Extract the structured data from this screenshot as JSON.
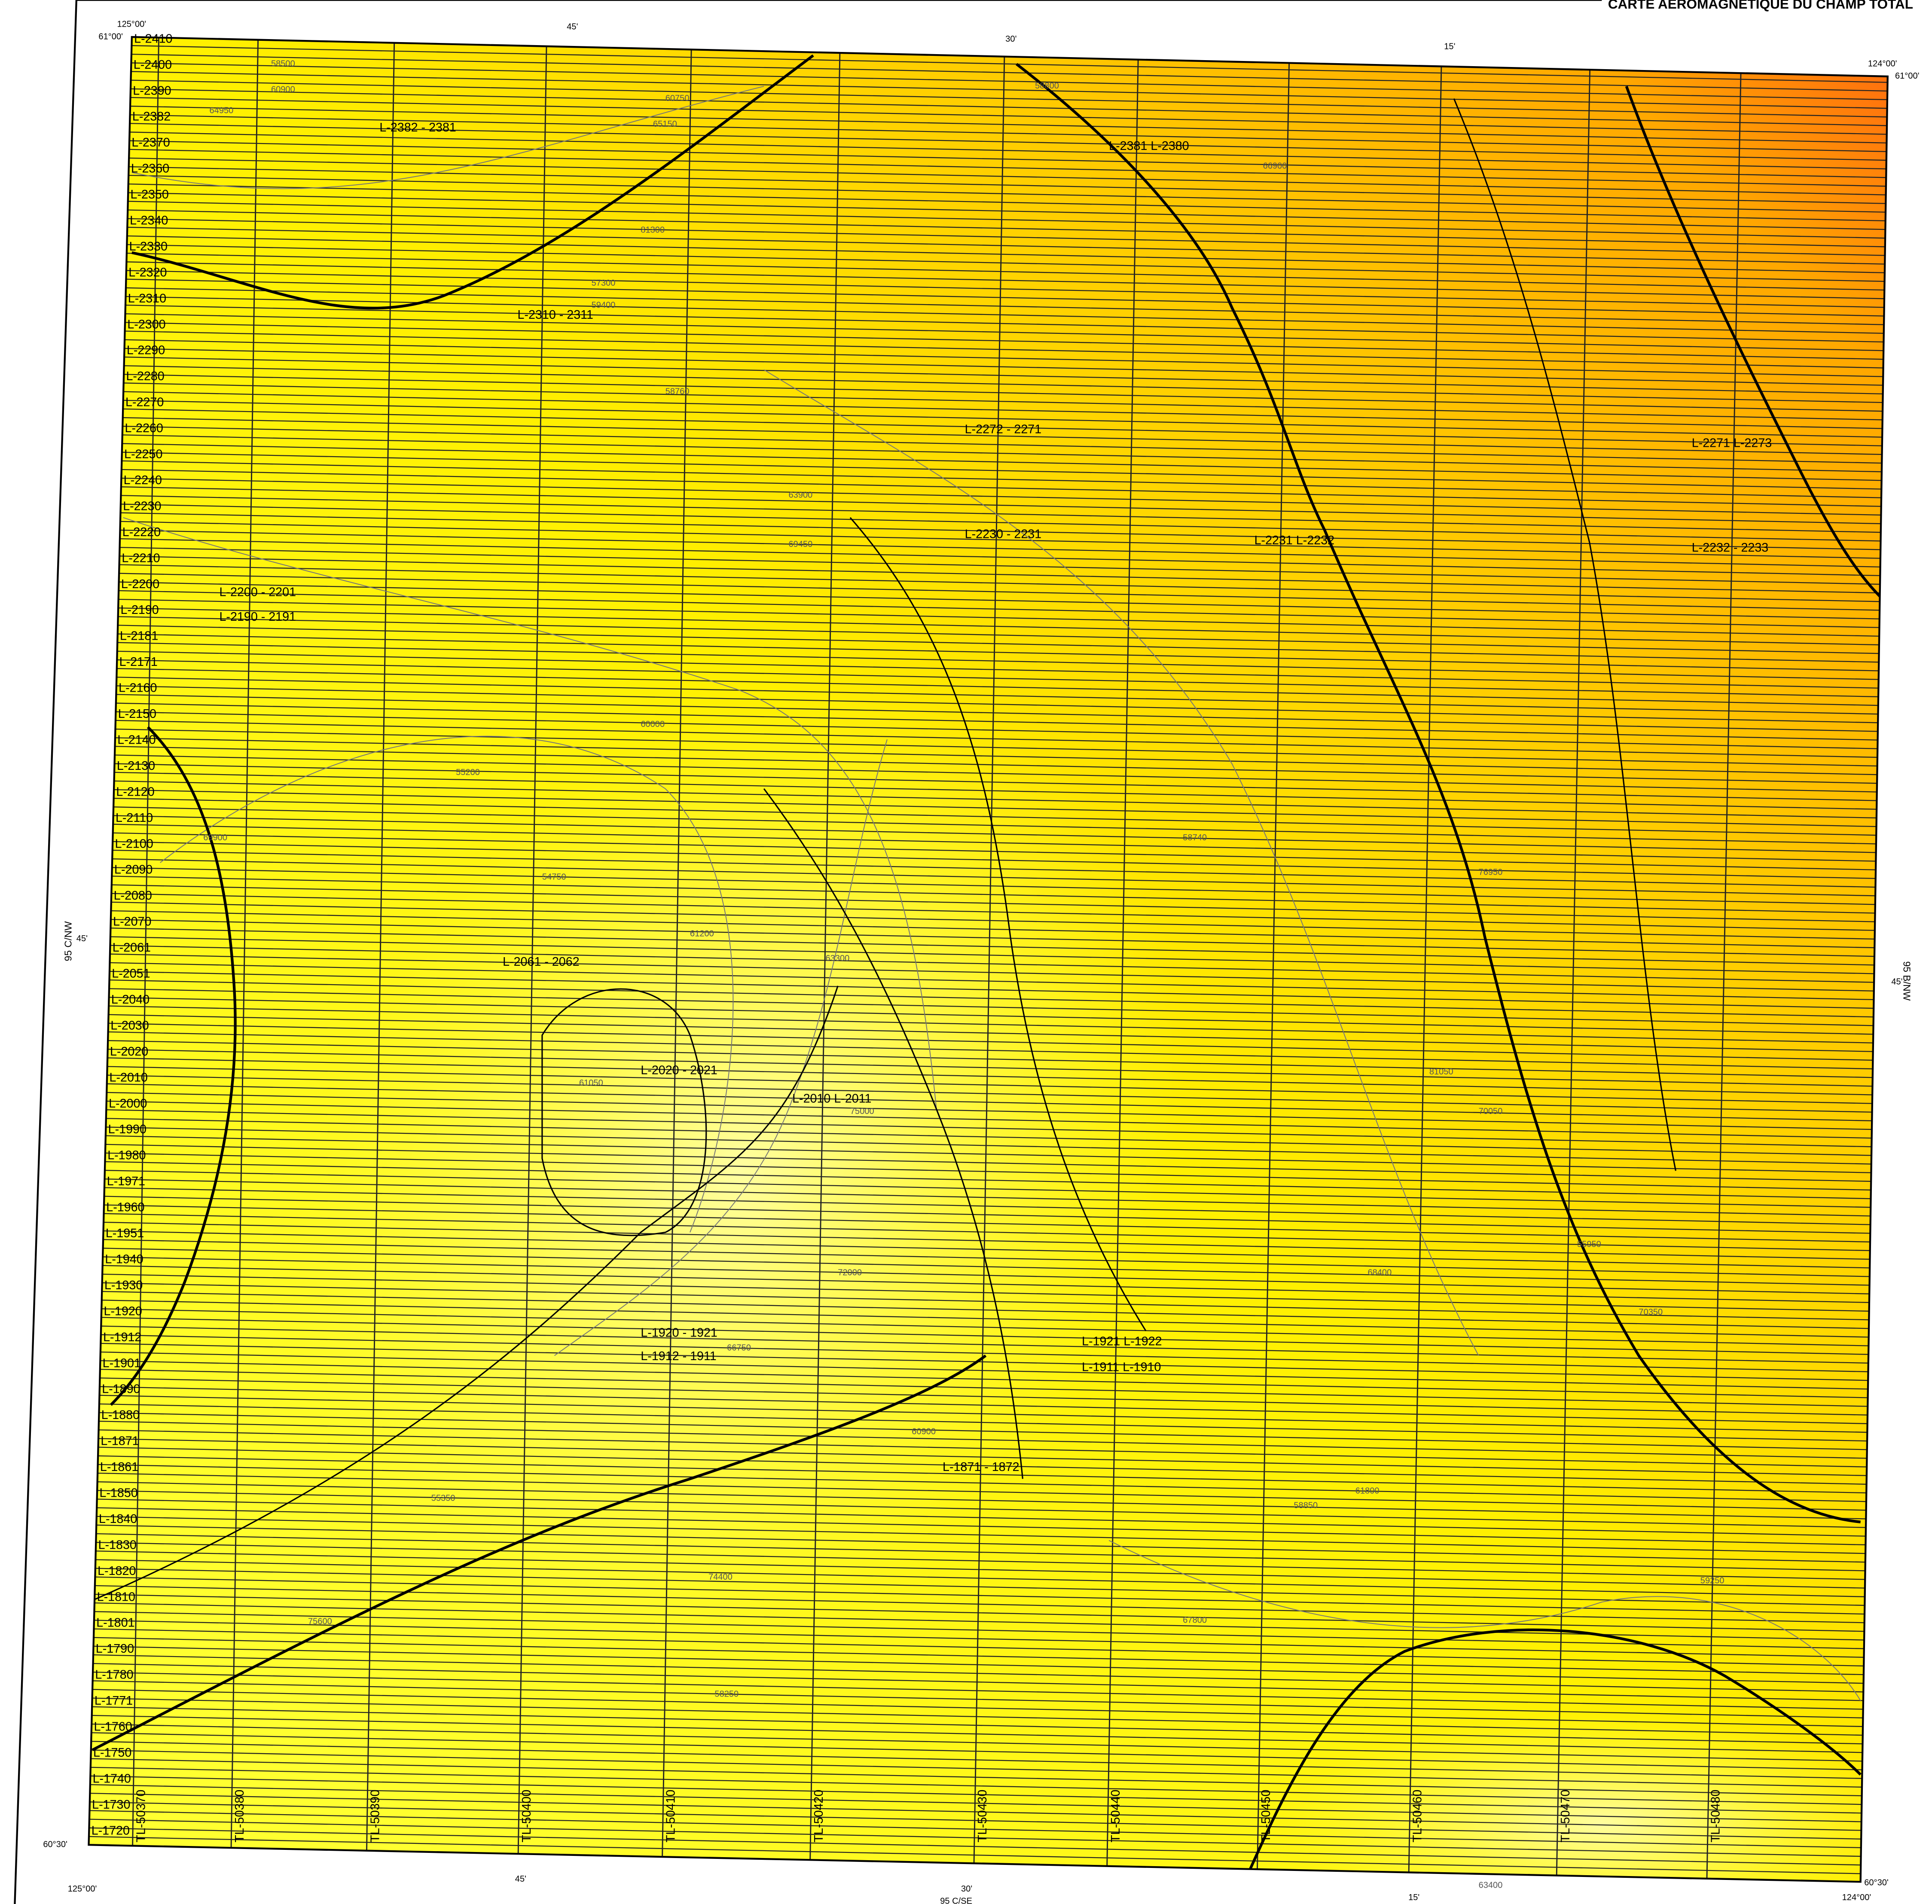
{
  "header": {
    "title": "CARTE AÉROMAGNÉTIQUE DU CHAMP TOTAL"
  },
  "edge_labels": {
    "top_left_lon": "125°00'",
    "top_left_lat": "61°00'",
    "top_45": "45'",
    "top_30": "30'",
    "top_15": "15'",
    "top_right_lon": "124°00'",
    "top_right_lat": "61°00'",
    "left_45": "45'",
    "left_sheet": "95 C/NW",
    "right_45": "45'",
    "right_sheet": "95 B/NW",
    "bottom_left_lat": "60°30'",
    "bottom_left_lon": "125°00'",
    "bottom_45": "45'",
    "bottom_30": "30'",
    "bottom_sheet": "95 C/SE",
    "bottom_15": "15'",
    "bottom_right_lat": "60°30'",
    "bottom_right_lon": "124°00'"
  },
  "flight_lines": [
    "L-2410",
    "L-2400",
    "L-2390",
    "L-2382",
    "L-2370",
    "L-2360",
    "L-2350",
    "L-2340",
    "L-2330",
    "L-2320",
    "L-2310",
    "L-2300",
    "L-2290",
    "L-2280",
    "L-2270",
    "L-2260",
    "L-2250",
    "L-2240",
    "L-2230",
    "L-2220",
    "L-2210",
    "L-2200",
    "L-2190",
    "L-2181",
    "L-2171",
    "L-2160",
    "L-2150",
    "L-2140",
    "L-2130",
    "L-2120",
    "L-2110",
    "L-2100",
    "L-2090",
    "L-2080",
    "L-2070",
    "L-2061",
    "L-2051",
    "L-2040",
    "L-2030",
    "L-2020",
    "L-2010",
    "L-2000",
    "L-1990",
    "L-1980",
    "L-1971",
    "L-1960",
    "L-1951",
    "L-1940",
    "L-1930",
    "L-1920",
    "L-1912",
    "L-1901",
    "L-1890",
    "L-1880",
    "L-1871",
    "L-1861",
    "L-1850",
    "L-1840",
    "L-1830",
    "L-1820",
    "L-1810",
    "L-1801",
    "L-1790",
    "L-1780",
    "L-1771",
    "L-1760",
    "L-1750",
    "L-1740",
    "L-1730",
    "L-1720"
  ],
  "tie_lines": [
    "TL-50370",
    "TL-50380",
    "TL-50390",
    "TL-50400",
    "TL-50410",
    "TL-50420",
    "TL-50430",
    "TL-50440",
    "TL-50450",
    "TL-50460",
    "TL-50470",
    "TL-50480"
  ],
  "line_pairs": [
    "L-2382 - 2381",
    "L-2381 L-2380",
    "L-2310 - 2311",
    "L-2272 - 2271",
    "L-2271 L-2273",
    "L-2230 - 2231",
    "L-2231 L-2232",
    "L-2232 - 2233",
    "L-2200 - 2201",
    "L-2190 - 2191",
    "L-2061 - 2062",
    "L-2020 - 2021",
    "L-2010 L-2011",
    "L-1920 - 1921",
    "L-1912 - 1911",
    "L-1921 L-1922",
    "L-1911 L-1910",
    "L-1871 - 1872"
  ],
  "contour_labels": [
    "58500",
    "60900",
    "64950",
    "60750",
    "65150",
    "58800",
    "66900",
    "81300",
    "57300",
    "59400",
    "58760",
    "63900",
    "69450",
    "55200",
    "60000",
    "54750",
    "61200",
    "63300",
    "61050",
    "72000",
    "66750",
    "60900",
    "74400",
    "63400",
    "75000",
    "58740",
    "76950",
    "81050",
    "70050",
    "68400",
    "69900",
    "55950",
    "75600",
    "61800",
    "70350",
    "58850",
    "67800",
    "59250",
    "55350",
    "58250"
  ]
}
